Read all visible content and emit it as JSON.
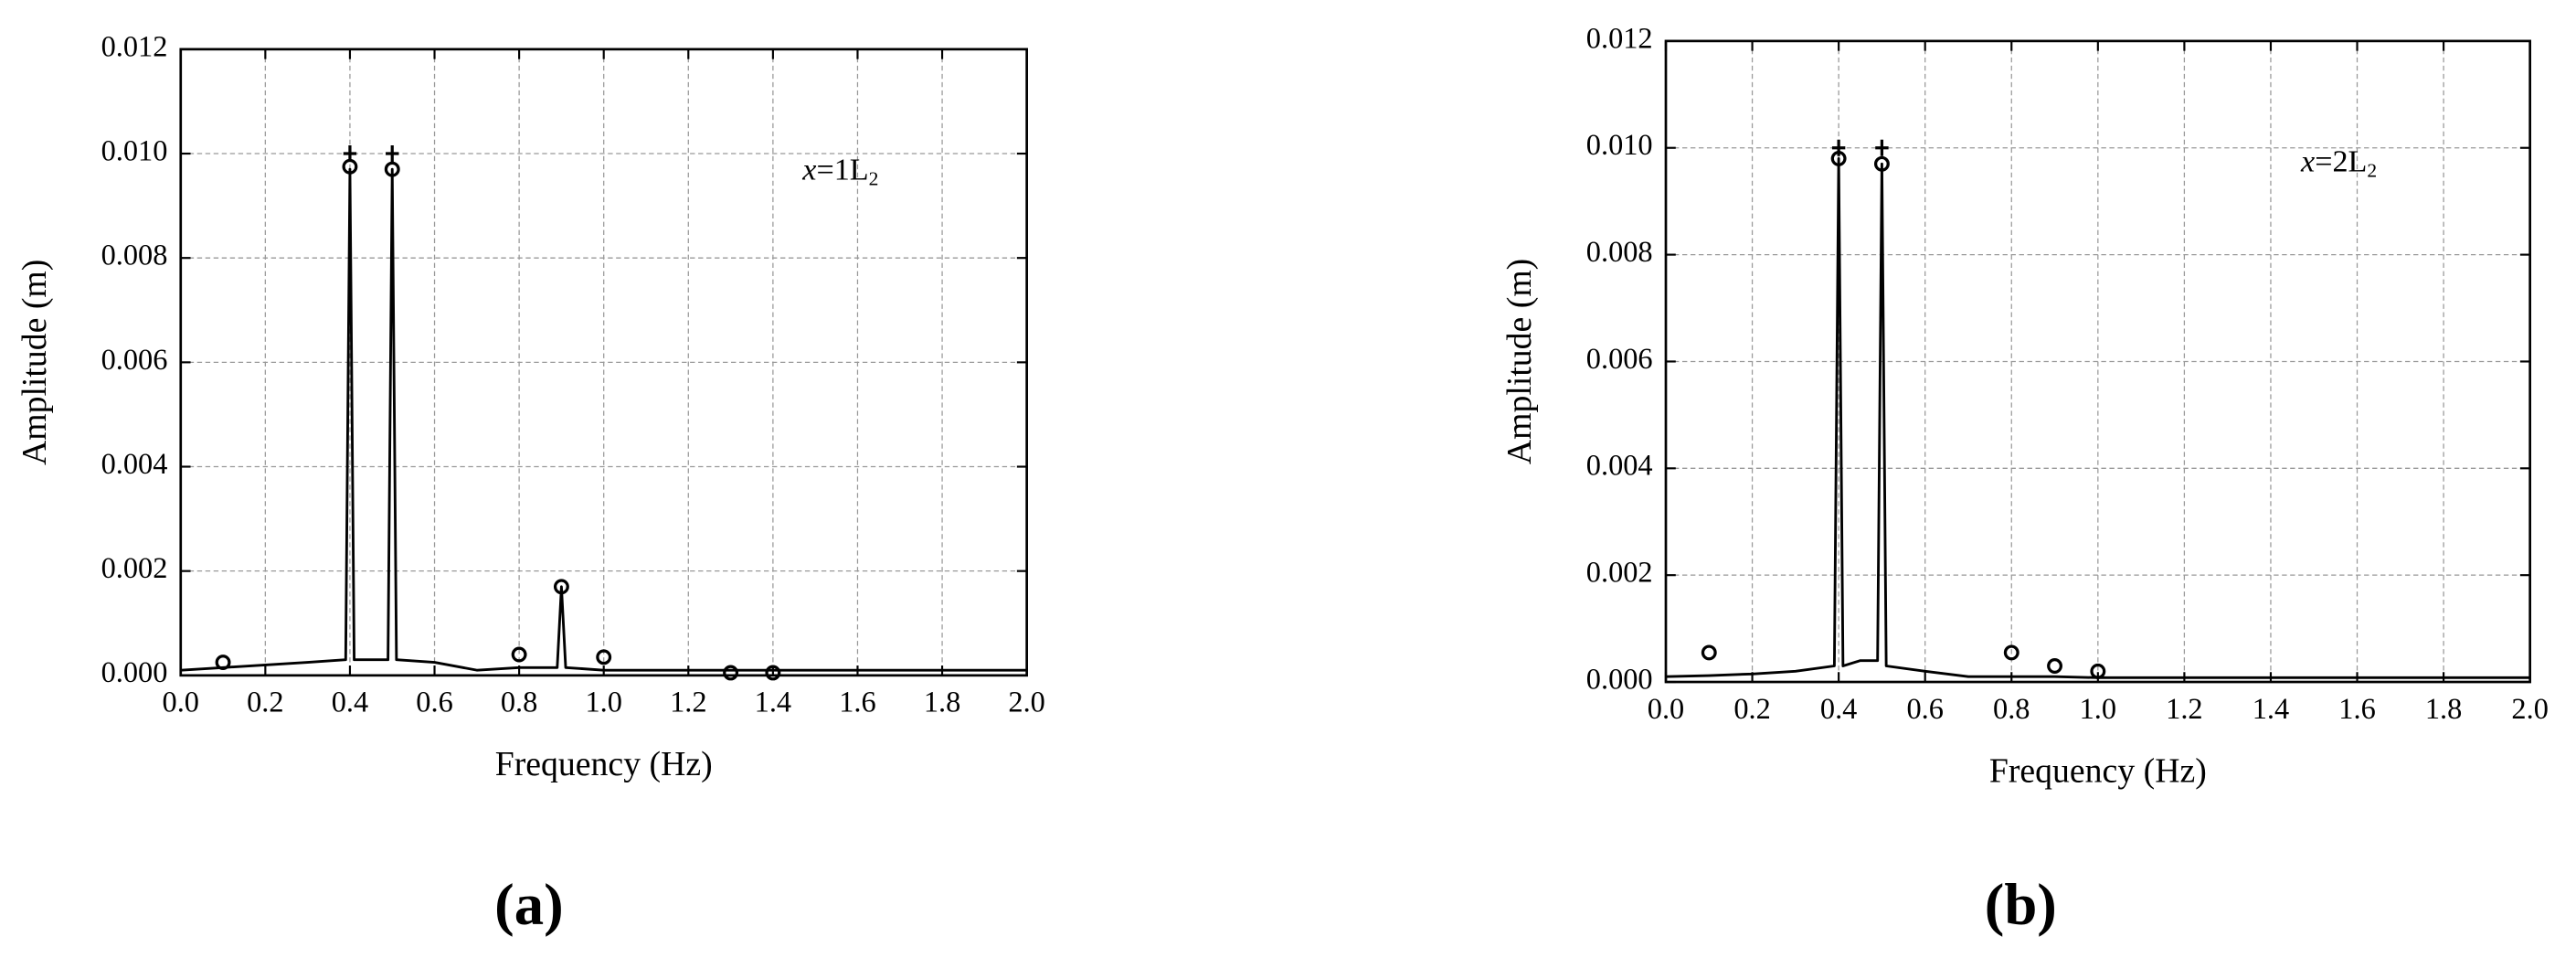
{
  "chart_data": [
    {
      "type": "line",
      "label": "(a)",
      "annotation": [
        "x",
        "=1L",
        "2"
      ],
      "x_label": "Frequency (Hz)",
      "y_label": "Amplitude (m)",
      "xlim": [
        0,
        2
      ],
      "ylim": [
        0,
        0.012
      ],
      "xticks": [
        {
          "value": 0,
          "label": "0.0"
        },
        0.2,
        0.4,
        0.6,
        0.8,
        {
          "value": 1,
          "label": "1.0"
        },
        1.2,
        1.4,
        1.6,
        1.8,
        {
          "value": 2,
          "label": "2.0"
        }
      ],
      "yticks": [
        {
          "value": 0,
          "label": "0.000"
        },
        0.002,
        0.004,
        0.006,
        0.008,
        {
          "value": 0.01,
          "label": "0.010"
        },
        0.012
      ],
      "grid": true,
      "series": [
        {
          "marker": "line",
          "color": "#000000",
          "x": [
            0,
            0.1,
            0.2,
            0.3,
            0.39,
            0.4,
            0.41,
            0.45,
            0.49,
            0.5,
            0.51,
            0.6,
            0.7,
            0.8,
            0.89,
            0.9,
            0.91,
            1.0,
            1.2,
            1.4,
            1.6,
            1.8,
            2.0
          ],
          "values": [
            0.0001,
            0.00015,
            0.0002,
            0.00025,
            0.0003,
            0.0097,
            0.0003,
            0.0003,
            0.0003,
            0.0097,
            0.0003,
            0.00025,
            0.0001,
            0.00015,
            0.00015,
            0.0017,
            0.00015,
            0.0001,
            0.0001,
            0.0001,
            0.0001,
            0.0001,
            0.0001
          ]
        },
        {
          "marker": "circle",
          "color": "#000000",
          "x": [
            0.1,
            0.4,
            0.5,
            0.8,
            0.9,
            1.0,
            1.3,
            1.4
          ],
          "values": [
            0.00025,
            0.00975,
            0.0097,
            0.0004,
            0.0017,
            0.00035,
            5e-05,
            5e-05
          ]
        },
        {
          "marker": "plus",
          "color": "#000000",
          "x": [
            0.4,
            0.5
          ],
          "values": [
            0.01,
            0.01
          ]
        }
      ]
    },
    {
      "type": "line",
      "label": "(b)",
      "annotation": [
        "x",
        "=2L",
        "2"
      ],
      "x_label": "Frequency (Hz)",
      "y_label": "Amplitude (m)",
      "xlim": [
        0,
        2
      ],
      "ylim": [
        0,
        0.012
      ],
      "xticks": [
        {
          "value": 0,
          "label": "0.0"
        },
        0.2,
        0.4,
        0.6,
        0.8,
        {
          "value": 1,
          "label": "1.0"
        },
        1.2,
        1.4,
        1.6,
        1.8,
        {
          "value": 2,
          "label": "2.0"
        }
      ],
      "yticks": [
        {
          "value": 0,
          "label": "0.000"
        },
        0.002,
        0.004,
        0.006,
        0.008,
        {
          "value": 0.01,
          "label": "0.010"
        },
        0.012
      ],
      "grid": true,
      "series": [
        {
          "marker": "line",
          "color": "#000000",
          "x": [
            0,
            0.1,
            0.2,
            0.3,
            0.39,
            0.4,
            0.41,
            0.45,
            0.49,
            0.5,
            0.51,
            0.6,
            0.7,
            0.8,
            0.9,
            1.0,
            1.2,
            1.4,
            1.6,
            1.8,
            2.0
          ],
          "values": [
            0.0001,
            0.00012,
            0.00015,
            0.0002,
            0.0003,
            0.0098,
            0.0003,
            0.0004,
            0.0004,
            0.0097,
            0.0003,
            0.0002,
            0.0001,
            0.0001,
            0.0001,
            8e-05,
            8e-05,
            8e-05,
            8e-05,
            8e-05,
            8e-05
          ]
        },
        {
          "marker": "circle",
          "color": "#000000",
          "x": [
            0.1,
            0.4,
            0.5,
            0.8,
            0.9,
            1.0
          ],
          "values": [
            0.00055,
            0.0098,
            0.0097,
            0.00055,
            0.0003,
            0.0002
          ]
        },
        {
          "marker": "plus",
          "color": "#000000",
          "x": [
            0.4,
            0.5
          ],
          "values": [
            0.01,
            0.01
          ]
        }
      ]
    }
  ]
}
